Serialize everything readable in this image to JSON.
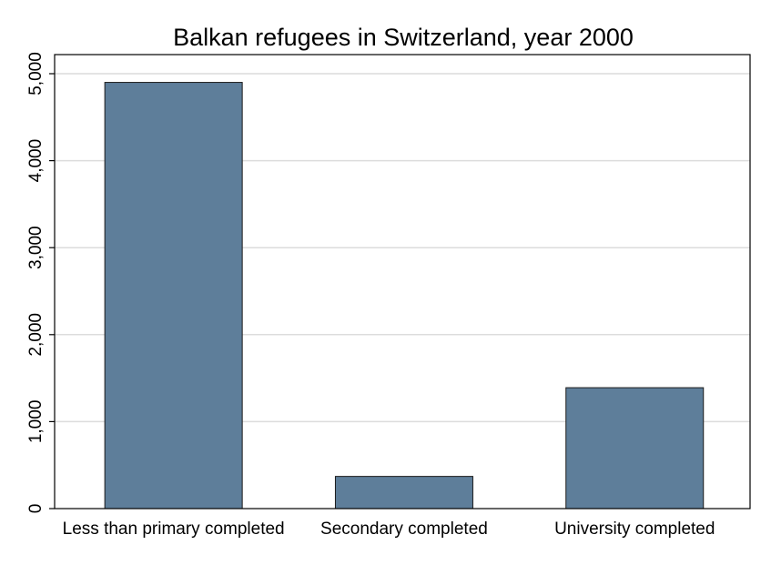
{
  "chart_data": {
    "type": "bar",
    "title": "Balkan refugees in Switzerland, year 2000",
    "xlabel": "",
    "ylabel": "",
    "categories": [
      "Less than primary completed",
      "Secondary completed",
      "University completed"
    ],
    "values": [
      4900,
      370,
      1390
    ],
    "ylim": [
      0,
      5000
    ],
    "yticks": [
      0,
      1000,
      2000,
      3000,
      4000,
      5000
    ],
    "ytick_labels": [
      "0",
      "1,000",
      "2,000",
      "3,000",
      "4,000",
      "5,000"
    ],
    "grid": true,
    "legend": "none",
    "bar_color": "#5e7e9a",
    "bar_edge_color": "#1a1a1a",
    "grid_color": "#dcdcdc"
  }
}
